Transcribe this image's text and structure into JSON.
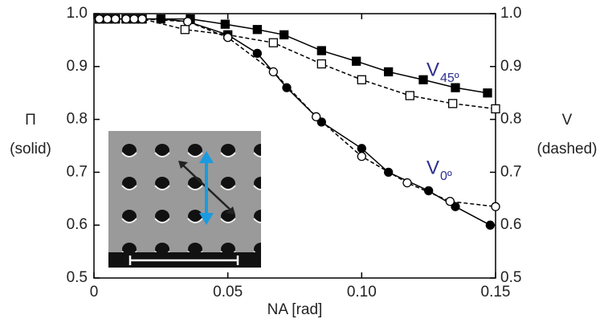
{
  "chart_data": {
    "type": "line",
    "xlabel": "NA [rad]",
    "ylabel": [
      "Π",
      "(solid)"
    ],
    "y2label": [
      "V",
      "(dashed)"
    ],
    "xlim": [
      0,
      0.15
    ],
    "xticks": [
      0,
      0.05,
      {
        "value": 0.1,
        "label": "0.10"
      },
      0.15
    ],
    "ylim": [
      0.5,
      1.0
    ],
    "yticks": [
      0.5,
      0.6,
      0.7,
      0.8,
      0.9,
      {
        "value": 1.0,
        "label": "1.0"
      }
    ],
    "y2lim": [
      0.5,
      1.0
    ],
    "y2ticks": [
      0.5,
      0.6,
      0.7,
      0.8,
      0.9,
      {
        "value": 1.0,
        "label": "1.0"
      }
    ],
    "annotations": [
      {
        "text": "V",
        "sub": "45º",
        "color": "#2e2e8f"
      },
      {
        "text": "V",
        "sub": "0º",
        "color": "#2e2e8f"
      }
    ],
    "series": [
      {
        "color": "#000000",
        "marker": "square",
        "filled": true,
        "dashed": false,
        "x": [
          0.002,
          0.005,
          0.008,
          0.012,
          0.015,
          0.018,
          0.025,
          0.036,
          0.049,
          0.061,
          0.071,
          0.085,
          0.098,
          0.11,
          0.123,
          0.135,
          0.147
        ],
        "values": [
          0.99,
          0.99,
          0.99,
          0.99,
          0.99,
          0.99,
          0.99,
          0.99,
          0.98,
          0.97,
          0.96,
          0.93,
          0.91,
          0.89,
          0.875,
          0.86,
          0.85
        ]
      },
      {
        "color": "#000000",
        "marker": "square",
        "filled": false,
        "dashed": true,
        "axis": "y2",
        "x": [
          0.002,
          0.005,
          0.008,
          0.012,
          0.015,
          0.018,
          0.034,
          0.05,
          0.067,
          0.085,
          0.1,
          0.118,
          0.134,
          0.15
        ],
        "values": [
          0.99,
          0.99,
          0.99,
          0.99,
          0.99,
          0.99,
          0.97,
          0.96,
          0.945,
          0.905,
          0.875,
          0.845,
          0.83,
          0.82
        ]
      },
      {
        "color": "#000000",
        "marker": "circle",
        "filled": true,
        "dashed": false,
        "x": [
          0.002,
          0.005,
          0.008,
          0.012,
          0.015,
          0.018,
          0.025,
          0.035,
          0.05,
          0.061,
          0.072,
          0.085,
          0.1,
          0.11,
          0.125,
          0.135,
          0.148
        ],
        "values": [
          0.99,
          0.99,
          0.99,
          0.99,
          0.99,
          0.99,
          0.99,
          0.985,
          0.96,
          0.925,
          0.86,
          0.795,
          0.745,
          0.7,
          0.665,
          0.635,
          0.6
        ]
      },
      {
        "color": "#000000",
        "marker": "circle",
        "filled": false,
        "dashed": true,
        "axis": "y2",
        "x": [
          0.002,
          0.005,
          0.008,
          0.012,
          0.015,
          0.018,
          0.035,
          0.05,
          0.067,
          0.083,
          0.1,
          0.117,
          0.133,
          0.15
        ],
        "values": [
          0.99,
          0.99,
          0.99,
          0.99,
          0.99,
          0.99,
          0.985,
          0.955,
          0.89,
          0.805,
          0.73,
          0.68,
          0.645,
          0.635
        ]
      }
    ]
  }
}
